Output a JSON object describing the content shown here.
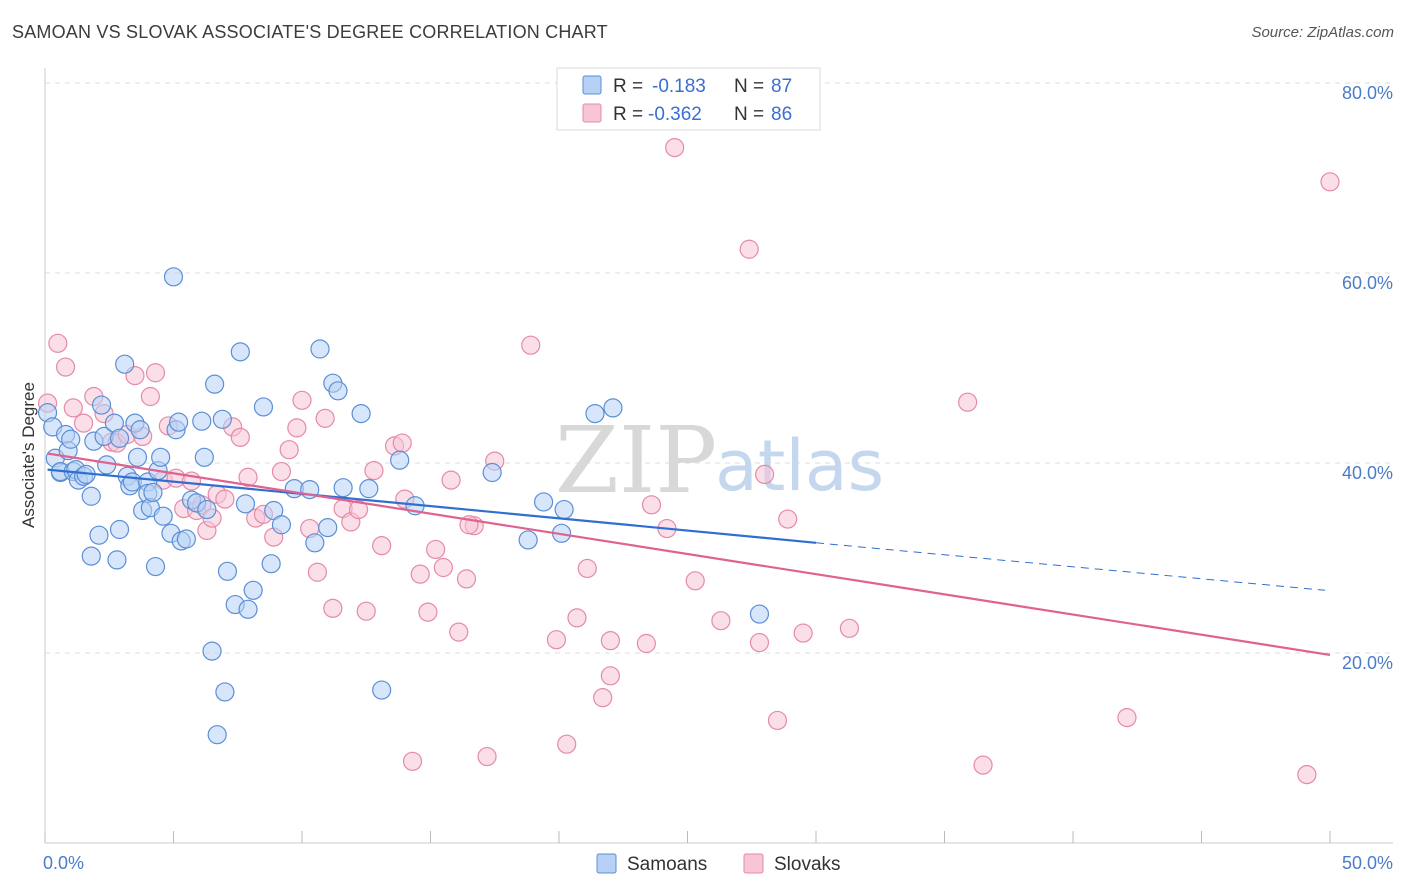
{
  "title": "SAMOAN VS SLOVAK ASSOCIATE'S DEGREE CORRELATION CHART",
  "source": "Source: ZipAtlas.com",
  "watermark": {
    "zip": "ZIP",
    "atlas": "atlas"
  },
  "colors": {
    "samoans_fill": "#b6d1f5",
    "samoans_stroke": "#5b8fd6",
    "samoans_line": "#2f6fd0",
    "slovaks_fill": "#f8c5d5",
    "slovaks_stroke": "#e58aa8",
    "slovaks_line": "#e0628f",
    "grid": "#dddddd",
    "tick_label": "#4a7cc9"
  },
  "legend": {
    "samoans": {
      "r_label": "R =",
      "r_value": "-0.183",
      "n_label": "N =",
      "n_value": "87"
    },
    "slovaks": {
      "r_label": "R =",
      "r_value": "-0.362",
      "n_label": "N =",
      "n_value": "86"
    }
  },
  "chart_data": {
    "type": "scatter",
    "title": "SAMOAN VS SLOVAK ASSOCIATE'S DEGREE CORRELATION CHART",
    "xlabel": "",
    "ylabel": "Associate's Degree",
    "xlim": [
      0,
      50
    ],
    "ylim": [
      0,
      82
    ],
    "x_tick_labels": [
      "0.0%",
      "50.0%"
    ],
    "y_ticks": [
      20,
      40,
      60,
      80
    ],
    "y_tick_labels": [
      "20.0%",
      "40.0%",
      "60.0%",
      "80.0%"
    ],
    "series": [
      {
        "name": "Samoans",
        "r": -0.183,
        "n": 87,
        "trend": {
          "x_start": 0.1,
          "y_start": 39.3,
          "x_solid_end": 30,
          "y_solid_end": 31.6,
          "x_dash_end": 50,
          "y_dash_end": 26.6
        },
        "points": [
          [
            0.1,
            45.3
          ],
          [
            0.3,
            43.8
          ],
          [
            0.4,
            40.5
          ],
          [
            0.6,
            39.0
          ],
          [
            0.6,
            39.1
          ],
          [
            0.8,
            43.0
          ],
          [
            0.9,
            41.3
          ],
          [
            1.0,
            42.5
          ],
          [
            1.1,
            39.1
          ],
          [
            1.2,
            39.3
          ],
          [
            1.3,
            38.2
          ],
          [
            1.5,
            38.6
          ],
          [
            1.6,
            38.8
          ],
          [
            1.8,
            36.5
          ],
          [
            1.8,
            30.2
          ],
          [
            1.9,
            42.3
          ],
          [
            2.1,
            32.4
          ],
          [
            2.2,
            46.1
          ],
          [
            2.3,
            42.8
          ],
          [
            2.4,
            39.8
          ],
          [
            2.7,
            44.2
          ],
          [
            2.8,
            29.8
          ],
          [
            2.9,
            42.6
          ],
          [
            2.9,
            33.0
          ],
          [
            3.1,
            50.4
          ],
          [
            3.2,
            38.6
          ],
          [
            3.3,
            37.6
          ],
          [
            3.4,
            38.0
          ],
          [
            3.5,
            44.2
          ],
          [
            3.6,
            40.6
          ],
          [
            3.7,
            43.5
          ],
          [
            3.8,
            35.0
          ],
          [
            4.0,
            38.0
          ],
          [
            4.0,
            36.8
          ],
          [
            4.1,
            35.3
          ],
          [
            4.2,
            36.9
          ],
          [
            4.3,
            29.1
          ],
          [
            4.4,
            39.2
          ],
          [
            4.5,
            40.6
          ],
          [
            4.6,
            34.4
          ],
          [
            4.9,
            32.6
          ],
          [
            5.0,
            59.6
          ],
          [
            5.1,
            43.5
          ],
          [
            5.2,
            44.3
          ],
          [
            5.3,
            31.8
          ],
          [
            5.5,
            32.0
          ],
          [
            5.7,
            36.1
          ],
          [
            5.9,
            35.8
          ],
          [
            6.1,
            44.4
          ],
          [
            6.2,
            40.6
          ],
          [
            6.3,
            35.1
          ],
          [
            6.5,
            20.2
          ],
          [
            6.6,
            48.3
          ],
          [
            6.7,
            11.4
          ],
          [
            6.9,
            44.6
          ],
          [
            7.0,
            15.9
          ],
          [
            7.1,
            28.6
          ],
          [
            7.4,
            25.1
          ],
          [
            7.6,
            51.7
          ],
          [
            7.8,
            35.7
          ],
          [
            7.9,
            24.6
          ],
          [
            8.1,
            26.6
          ],
          [
            8.5,
            45.9
          ],
          [
            8.8,
            29.4
          ],
          [
            8.9,
            35.0
          ],
          [
            9.2,
            33.5
          ],
          [
            9.7,
            37.3
          ],
          [
            10.3,
            37.2
          ],
          [
            10.5,
            31.6
          ],
          [
            10.7,
            52.0
          ],
          [
            11.0,
            33.2
          ],
          [
            11.2,
            48.4
          ],
          [
            11.4,
            47.6
          ],
          [
            11.6,
            37.4
          ],
          [
            12.3,
            45.2
          ],
          [
            12.6,
            37.3
          ],
          [
            13.1,
            16.1
          ],
          [
            14.4,
            35.5
          ],
          [
            17.4,
            39.0
          ],
          [
            18.8,
            31.9
          ],
          [
            19.4,
            35.9
          ],
          [
            20.1,
            32.6
          ],
          [
            20.2,
            35.1
          ],
          [
            21.4,
            45.2
          ],
          [
            22.1,
            45.8
          ],
          [
            27.8,
            24.1
          ],
          [
            13.8,
            40.3
          ]
        ]
      },
      {
        "name": "Slovaks",
        "r": -0.362,
        "n": 86,
        "trend": {
          "x_start": 0.1,
          "y_start": 41.0,
          "x_solid_end": 50,
          "y_solid_end": 19.8
        },
        "points": [
          [
            0.1,
            46.3
          ],
          [
            0.5,
            52.6
          ],
          [
            0.8,
            50.1
          ],
          [
            1.1,
            45.8
          ],
          [
            1.5,
            44.2
          ],
          [
            1.9,
            47.0
          ],
          [
            2.3,
            45.2
          ],
          [
            2.6,
            42.2
          ],
          [
            2.8,
            42.1
          ],
          [
            3.2,
            43.0
          ],
          [
            3.5,
            49.2
          ],
          [
            3.8,
            42.8
          ],
          [
            4.1,
            47.0
          ],
          [
            4.3,
            49.5
          ],
          [
            4.6,
            38.2
          ],
          [
            4.8,
            43.9
          ],
          [
            5.1,
            38.4
          ],
          [
            5.4,
            35.2
          ],
          [
            5.7,
            38.1
          ],
          [
            5.9,
            35.0
          ],
          [
            6.1,
            35.6
          ],
          [
            6.3,
            32.9
          ],
          [
            6.5,
            34.2
          ],
          [
            6.7,
            36.7
          ],
          [
            7.0,
            36.2
          ],
          [
            7.3,
            43.8
          ],
          [
            7.6,
            42.7
          ],
          [
            7.9,
            38.5
          ],
          [
            8.2,
            34.2
          ],
          [
            8.5,
            34.6
          ],
          [
            8.9,
            32.2
          ],
          [
            9.2,
            39.1
          ],
          [
            9.5,
            41.4
          ],
          [
            9.8,
            43.7
          ],
          [
            10.0,
            46.6
          ],
          [
            10.3,
            33.1
          ],
          [
            10.6,
            28.5
          ],
          [
            10.9,
            44.7
          ],
          [
            11.2,
            24.7
          ],
          [
            11.6,
            35.2
          ],
          [
            11.9,
            33.8
          ],
          [
            12.2,
            35.1
          ],
          [
            12.5,
            24.4
          ],
          [
            12.8,
            39.2
          ],
          [
            13.1,
            31.3
          ],
          [
            13.6,
            41.8
          ],
          [
            14.0,
            36.2
          ],
          [
            14.3,
            8.6
          ],
          [
            14.6,
            28.3
          ],
          [
            14.9,
            24.3
          ],
          [
            15.2,
            30.9
          ],
          [
            15.5,
            29.0
          ],
          [
            15.8,
            38.2
          ],
          [
            16.1,
            22.2
          ],
          [
            16.4,
            27.8
          ],
          [
            16.7,
            33.4
          ],
          [
            17.2,
            9.1
          ],
          [
            17.5,
            40.2
          ],
          [
            18.9,
            52.4
          ],
          [
            19.9,
            21.4
          ],
          [
            20.3,
            10.4
          ],
          [
            20.7,
            23.7
          ],
          [
            21.1,
            28.9
          ],
          [
            21.7,
            15.3
          ],
          [
            22.0,
            21.3
          ],
          [
            22.0,
            17.6
          ],
          [
            23.4,
            21.0
          ],
          [
            23.6,
            35.6
          ],
          [
            24.2,
            33.1
          ],
          [
            24.5,
            73.2
          ],
          [
            25.3,
            27.6
          ],
          [
            26.3,
            23.4
          ],
          [
            27.4,
            62.5
          ],
          [
            27.8,
            21.1
          ],
          [
            28.0,
            38.8
          ],
          [
            28.5,
            12.9
          ],
          [
            28.9,
            34.1
          ],
          [
            29.5,
            22.1
          ],
          [
            31.3,
            22.6
          ],
          [
            35.9,
            46.4
          ],
          [
            36.5,
            8.2
          ],
          [
            42.1,
            13.2
          ],
          [
            49.1,
            7.2
          ],
          [
            50.0,
            69.6
          ],
          [
            13.9,
            42.1
          ],
          [
            16.5,
            33.5
          ]
        ]
      }
    ]
  }
}
